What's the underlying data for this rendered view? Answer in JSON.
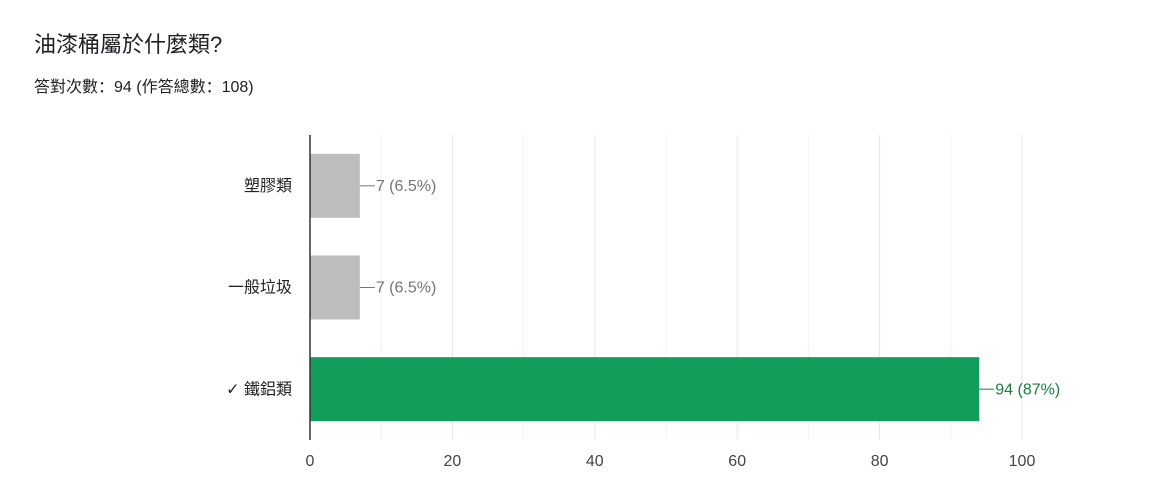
{
  "chart_data": {
    "type": "bar",
    "orientation": "horizontal",
    "title": "油漆桶屬於什麼類?",
    "subtitle": "答對次數：94 (作答總數：108)",
    "categories": [
      "塑膠類",
      "一般垃圾",
      "✓ 鐵鋁類"
    ],
    "values": [
      7,
      7,
      94
    ],
    "value_labels": [
      "7 (6.5%)",
      "7 (6.5%)",
      "94 (87%)"
    ],
    "colors": [
      "#bdbdbd",
      "#bdbdbd",
      "#129d5a"
    ],
    "label_colors": [
      "#757575",
      "#757575",
      "#188038"
    ],
    "xlim": [
      0,
      100
    ],
    "xticks": [
      0,
      20,
      40,
      60,
      80,
      100
    ],
    "minor_xticks": [
      10,
      30,
      50,
      70,
      90
    ],
    "grid": true
  }
}
